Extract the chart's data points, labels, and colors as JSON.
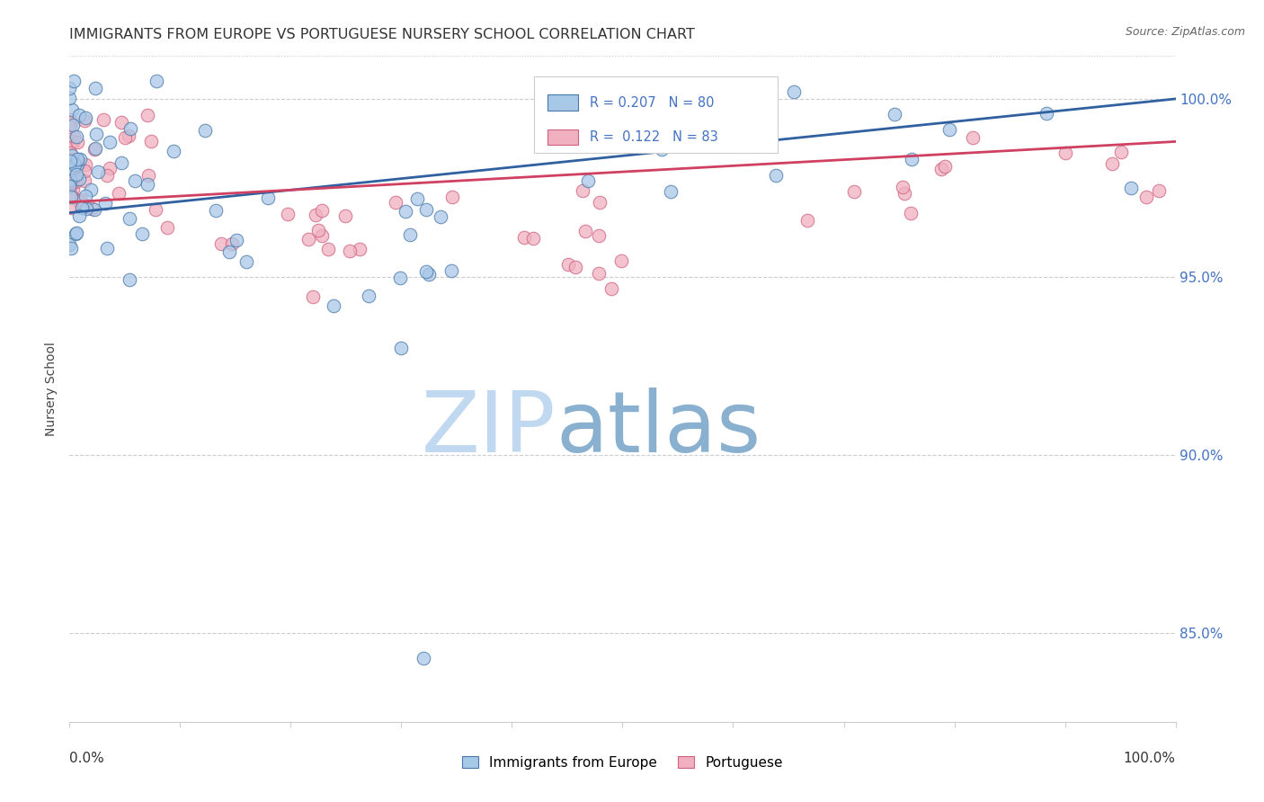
{
  "title": "IMMIGRANTS FROM EUROPE VS PORTUGUESE NURSERY SCHOOL CORRELATION CHART",
  "source": "Source: ZipAtlas.com",
  "ylabel": "Nursery School",
  "yticks_labels": [
    "100.0%",
    "95.0%",
    "90.0%",
    "85.0%"
  ],
  "yticks_vals": [
    1.0,
    0.95,
    0.9,
    0.85
  ],
  "xlim": [
    0.0,
    1.0
  ],
  "ylim": [
    0.825,
    1.012
  ],
  "legend_labels": [
    "Immigrants from Europe",
    "Portuguese"
  ],
  "blue_fill": "#a8c8e8",
  "pink_fill": "#f0b0c0",
  "blue_edge": "#4878a8",
  "pink_edge": "#d06080",
  "blue_line": "#3060a0",
  "pink_line": "#d04060",
  "R_blue": 0.207,
  "N_blue": 80,
  "R_pink": 0.122,
  "N_pink": 83,
  "watermark_zip_color": "#c0d8f0",
  "watermark_atlas_color": "#8ab0d0",
  "grid_color": "#cccccc",
  "background_color": "#ffffff",
  "right_tick_color": "#4472c4",
  "title_color": "#333333",
  "source_color": "#666666"
}
